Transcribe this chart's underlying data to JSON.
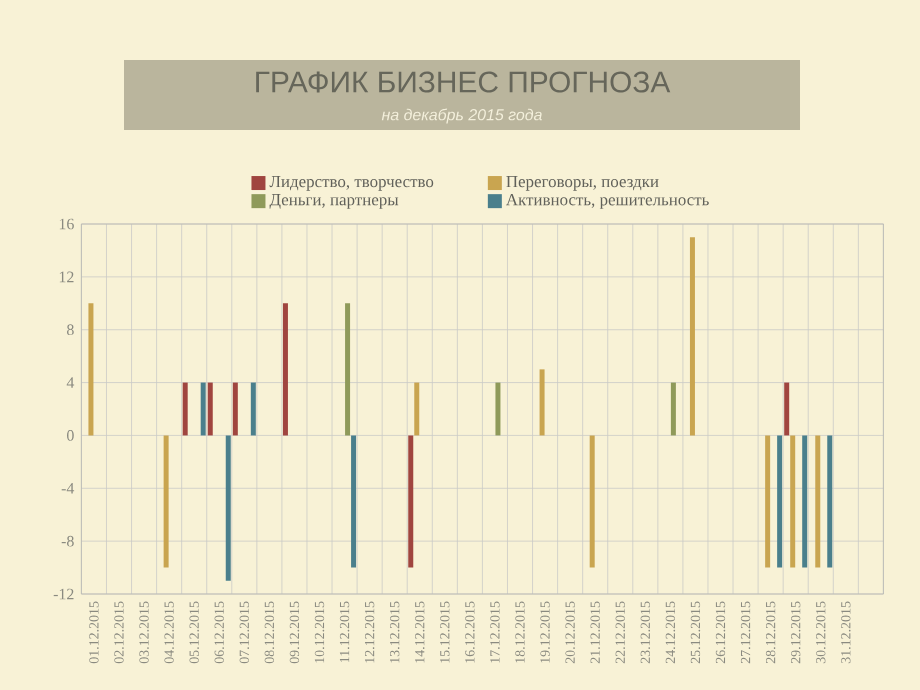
{
  "chart_data": {
    "type": "bar",
    "title": "ГРАФИК БИЗНЕС ПРОГНОЗА",
    "subtitle": "на декабрь 2015 года",
    "categories": [
      "01.12.2015",
      "02.12.2015",
      "03.12.2015",
      "04.12.2015",
      "05.12.2015",
      "06.12.2015",
      "07.12.2015",
      "08.12.2015",
      "09.12.2015",
      "10.12.2015",
      "11.12.2015",
      "12.12.2015",
      "13.12.2015",
      "14.12.2015",
      "15.12.2015",
      "16.12.2015",
      "17.12.2015",
      "18.12.2015",
      "19.12.2015",
      "20.12.2015",
      "21.12.2015",
      "22.12.2015",
      "23.12.2015",
      "24.12.2015",
      "25.12.2015",
      "26.12.2015",
      "27.12.2015",
      "28.12.2015",
      "29.12.2015",
      "30.12.2015",
      "31.12.2015",
      null
    ],
    "series": [
      {
        "name": "Лидерство, творчество",
        "color": "#a0453f",
        "values": [
          null,
          null,
          null,
          null,
          4,
          4,
          4,
          null,
          10,
          null,
          null,
          null,
          null,
          -10,
          null,
          null,
          null,
          null,
          null,
          null,
          null,
          null,
          null,
          null,
          null,
          null,
          null,
          null,
          4,
          null,
          null,
          null
        ]
      },
      {
        "name": "Переговоры, поездки",
        "color": "#c9a550",
        "values": [
          10,
          null,
          null,
          -10,
          null,
          null,
          null,
          null,
          null,
          null,
          null,
          null,
          null,
          4,
          null,
          null,
          null,
          null,
          5,
          null,
          -10,
          null,
          null,
          null,
          15,
          null,
          null,
          -10,
          -10,
          -10,
          null,
          null
        ]
      },
      {
        "name": "Деньги, партнеры",
        "color": "#8f9a5a",
        "values": [
          null,
          null,
          null,
          null,
          null,
          null,
          null,
          null,
          null,
          null,
          10,
          null,
          null,
          null,
          null,
          null,
          4,
          null,
          null,
          null,
          null,
          null,
          null,
          4,
          null,
          null,
          null,
          null,
          null,
          null,
          null,
          null
        ]
      },
      {
        "name": "Активность, решительность",
        "color": "#4a7f8c",
        "values": [
          null,
          null,
          null,
          null,
          4,
          -11,
          4,
          null,
          null,
          null,
          -10,
          null,
          null,
          null,
          null,
          null,
          null,
          null,
          null,
          null,
          null,
          null,
          null,
          null,
          null,
          null,
          null,
          -10,
          -10,
          -10,
          null,
          null
        ]
      }
    ],
    "ylim": [
      -12,
      16
    ],
    "yticks": [
      -12,
      -8,
      -4,
      0,
      4,
      8,
      12,
      16
    ],
    "grid": true,
    "legend": "top"
  }
}
